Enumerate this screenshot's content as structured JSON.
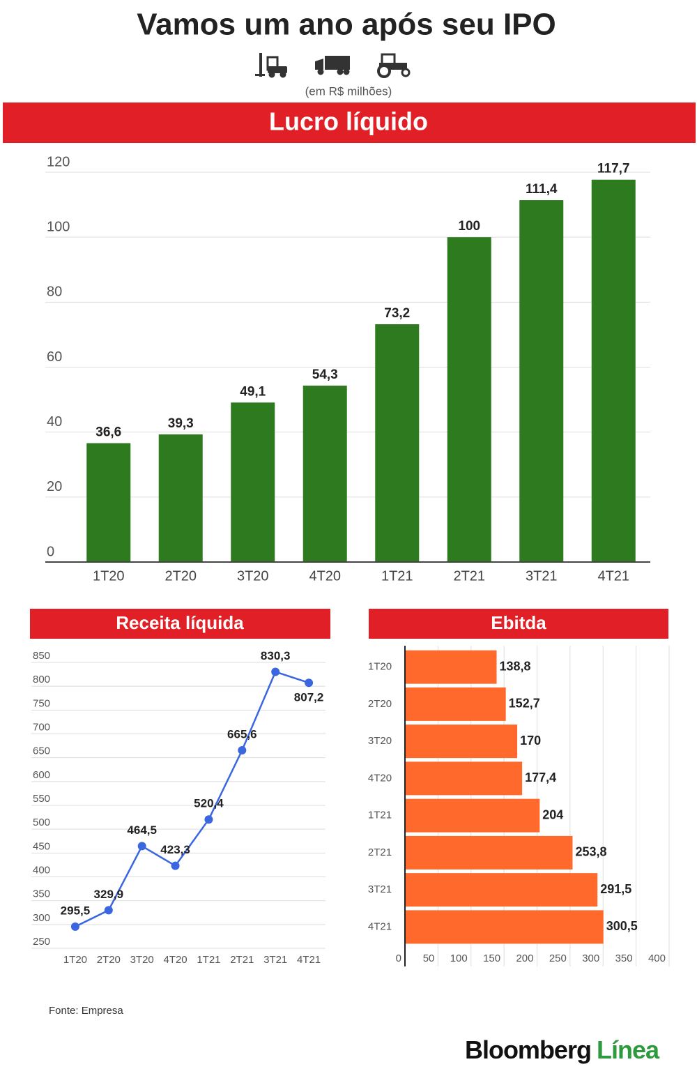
{
  "title": "Vamos um ano após seu IPO",
  "subtitle": "(em R$ milhões)",
  "source": "Fonte: Empresa",
  "brand": {
    "name": "Bloomberg",
    "product": "Línea"
  },
  "chart_data": [
    {
      "type": "bar",
      "title": "Lucro líquido",
      "categories": [
        "1T20",
        "2T20",
        "3T20",
        "4T20",
        "1T21",
        "2T21",
        "3T21",
        "4T21"
      ],
      "values": [
        36.6,
        39.3,
        49.1,
        54.3,
        73.2,
        100,
        111.4,
        117.7
      ],
      "value_labels": [
        "36,6",
        "39,3",
        "49,1",
        "54,3",
        "73,2",
        "100",
        "111,4",
        "117,7"
      ],
      "color": "#2e7a1f",
      "ylim": [
        0,
        120
      ],
      "yticks": [
        0,
        20,
        40,
        60,
        80,
        100,
        120
      ],
      "grid": true
    },
    {
      "type": "line",
      "title": "Receita líquida",
      "categories": [
        "1T20",
        "2T20",
        "3T20",
        "4T20",
        "1T21",
        "2T21",
        "3T21",
        "4T21"
      ],
      "values": [
        295.5,
        329.9,
        464.5,
        423.3,
        520.4,
        665.6,
        830.3,
        807.2
      ],
      "value_labels": [
        "295,5",
        "329,9",
        "464,5",
        "423,3",
        "520,4",
        "665,6",
        "830,3",
        "807,2"
      ],
      "color": "#3a66e0",
      "ylim": [
        250,
        850
      ],
      "yticks": [
        250,
        300,
        350,
        400,
        450,
        500,
        550,
        600,
        650,
        700,
        750,
        800,
        850
      ],
      "grid": true
    },
    {
      "type": "barh",
      "title": "Ebitda",
      "categories": [
        "1T20",
        "2T20",
        "3T20",
        "4T20",
        "1T21",
        "2T21",
        "3T21",
        "4T21"
      ],
      "values": [
        138.8,
        152.7,
        170,
        177.4,
        204,
        253.8,
        291.5,
        300.5
      ],
      "value_labels": [
        "138,8",
        "152,7",
        "170",
        "177,4",
        "204",
        "253,8",
        "291,5",
        "300,5"
      ],
      "color": "#ff6a2c",
      "xlim": [
        0,
        400
      ],
      "xticks": [
        0,
        50,
        100,
        150,
        200,
        250,
        300,
        350,
        400
      ],
      "grid": true
    }
  ]
}
